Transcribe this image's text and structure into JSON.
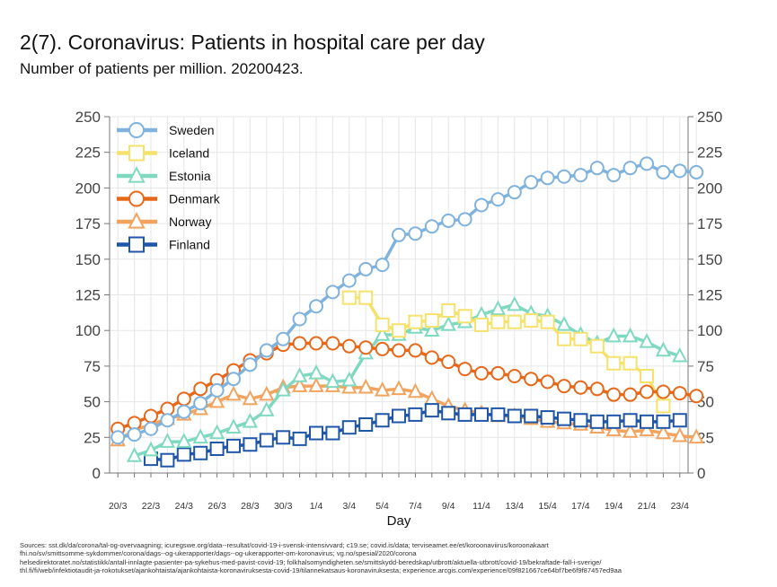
{
  "title": "2(7). Coronavirus: Patients in hospital care per day",
  "subtitle": "Number of patients per million. 20200423.",
  "sources": [
    "Sources: sst.dk/da/corona/tal-og-overvaagning; icuregswe.org/data--resultat/covid-19-i-svensk-intensivvard; c19.se; covid.is/data;  terviseamet.ee/et/koroonaviirus/koroonakaart",
    "fhi.no/sv/smittsomme-sykdommer/corona/dags--og-ukerapporter/dags--og-ukerapporter-om-koronavirus; vg.no/spesial/2020/corona",
    "helsedirektoratet.no/statistikk/antall-innlagte-pasienter-pa-sykehus-med-pavist-covid-19; folkhalsomyndigheten.se/smittskydd-beredskap/utbrott/aktuella-utbrott/covid-19/bekraftade-fall-i-sverige/",
    "thl.fi/fi/web/infektiotaudit-ja-rokotukset/ajankohtaista/ajankohtaista-koronaviruksesta-covid-19/tilannekatsaus-koronaviruksesta; experience.arcgis.com/experience/09f821667ce64bf7be6f9f87457ed9aa"
  ],
  "chart_data": {
    "type": "line",
    "xlabel": "Day",
    "ylabel": "",
    "ylim": [
      0,
      250
    ],
    "yticks": [
      0,
      25,
      50,
      75,
      100,
      125,
      150,
      175,
      200,
      225,
      250
    ],
    "x_start": "20/3",
    "x_end": "23/4",
    "xtick_labels": [
      "20/3",
      "22/3",
      "24/3",
      "26/3",
      "28/3",
      "30/3",
      "1/4",
      "3/4",
      "5/4",
      "7/4",
      "9/4",
      "11/4",
      "13/4",
      "15/4",
      "17/4",
      "19/4",
      "21/4",
      "23/4"
    ],
    "legend_position": "top-left",
    "grid": true,
    "series": [
      {
        "name": "Sweden",
        "color": "#7fb2dc",
        "marker": "circle",
        "start_day": 0,
        "values": [
          25,
          27,
          31,
          37,
          43,
          49,
          58,
          66,
          76,
          86,
          94,
          108,
          117,
          127,
          135,
          143,
          146,
          167,
          168,
          173,
          177,
          178,
          188,
          192,
          197,
          204,
          207,
          208,
          209,
          214,
          209,
          214,
          217,
          211,
          212,
          211
        ]
      },
      {
        "name": "Iceland",
        "color": "#f5e26c",
        "marker": "square",
        "start_day": 14,
        "values": [
          123,
          123,
          104,
          100,
          106,
          107,
          114,
          110,
          104,
          106,
          106,
          107,
          106,
          94,
          94,
          89,
          77,
          77,
          68,
          47
        ]
      },
      {
        "name": "Estonia",
        "color": "#7fd9c0",
        "marker": "triangle",
        "start_day": 1,
        "values": [
          12,
          16,
          22,
          22,
          25,
          28,
          32,
          36,
          44,
          58,
          68,
          70,
          64,
          65,
          84,
          97,
          97,
          102,
          100,
          104,
          106,
          111,
          115,
          118,
          112,
          110,
          104,
          97,
          91,
          96,
          96,
          92,
          86,
          82
        ]
      },
      {
        "name": "Denmark",
        "color": "#e8681a",
        "marker": "circle",
        "start_day": 0,
        "values": [
          31,
          35,
          40,
          45,
          52,
          59,
          65,
          72,
          79,
          84,
          90,
          91,
          91,
          91,
          89,
          88,
          87,
          86,
          86,
          81,
          78,
          73,
          70,
          70,
          68,
          66,
          64,
          61,
          60,
          59,
          55,
          55,
          57,
          57,
          56,
          54
        ]
      },
      {
        "name": "Norway",
        "color": "#f2a35e",
        "marker": "triangle",
        "start_day": 0,
        "values": [
          23,
          30,
          34,
          38,
          41,
          45,
          50,
          55,
          52,
          55,
          60,
          61,
          61,
          61,
          60,
          60,
          58,
          59,
          57,
          52,
          47,
          44,
          42,
          40,
          40,
          38,
          36,
          35,
          34,
          32,
          30,
          29,
          30,
          28,
          26,
          25
        ]
      },
      {
        "name": "Finland",
        "color": "#1f56a8",
        "marker": "square",
        "start_day": 2,
        "values": [
          10,
          9,
          13,
          14,
          17,
          19,
          20,
          23,
          25,
          24,
          28,
          28,
          32,
          34,
          37,
          40,
          41,
          44,
          42,
          41,
          41,
          41,
          40,
          40,
          39,
          38,
          37,
          36,
          36,
          37,
          36,
          36,
          37
        ]
      }
    ]
  }
}
